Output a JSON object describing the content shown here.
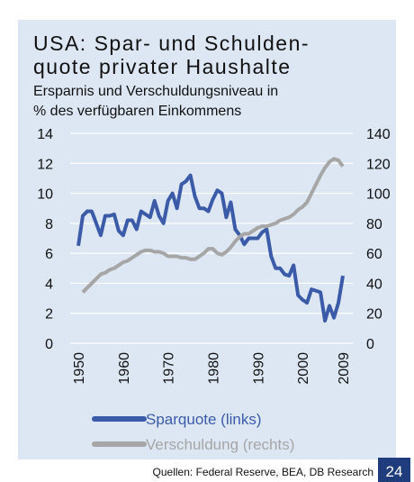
{
  "chart_data": {
    "type": "line",
    "title": [
      "USA: Spar- und Schulden-",
      "quote privater Haushalte"
    ],
    "subtitle": [
      "Ersparnis und Verschuldungsniveau in",
      "% des verfügbaren Einkommens"
    ],
    "source": "Quellen: Federal Reserve, BEA, DB Research",
    "page_number": "24",
    "x": [
      1950,
      1951,
      1952,
      1953,
      1954,
      1955,
      1956,
      1957,
      1958,
      1959,
      1960,
      1961,
      1962,
      1963,
      1964,
      1965,
      1966,
      1967,
      1968,
      1969,
      1970,
      1971,
      1972,
      1973,
      1974,
      1975,
      1976,
      1977,
      1978,
      1979,
      1980,
      1981,
      1982,
      1983,
      1984,
      1985,
      1986,
      1987,
      1988,
      1989,
      1990,
      1991,
      1992,
      1993,
      1994,
      1995,
      1996,
      1997,
      1998,
      1999,
      2000,
      2001,
      2002,
      2003,
      2004,
      2005,
      2006,
      2007,
      2008,
      2009
    ],
    "xlim": [
      1950,
      2009
    ],
    "xticks": [
      1950,
      1960,
      1970,
      1980,
      1990,
      2000,
      2009
    ],
    "ylim": [
      0,
      14
    ],
    "yticks": [
      0,
      2,
      4,
      6,
      8,
      10,
      12,
      14
    ],
    "y2lim": [
      0,
      140
    ],
    "y2ticks": [
      0,
      20,
      40,
      60,
      80,
      100,
      120,
      140
    ],
    "grid": true,
    "series": [
      {
        "name": "Sparquote (links)",
        "color": "#3b5ba9",
        "axis": "y",
        "values": [
          6.5,
          8.5,
          8.8,
          8.8,
          8.0,
          7.2,
          8.5,
          8.5,
          8.6,
          7.5,
          7.2,
          8.2,
          8.2,
          7.6,
          8.8,
          8.6,
          8.4,
          9.5,
          8.5,
          8.0,
          9.5,
          10.0,
          9.0,
          10.6,
          10.8,
          11.2,
          9.8,
          9.0,
          9.0,
          8.8,
          9.6,
          10.2,
          10.0,
          8.4,
          9.4,
          7.6,
          7.2,
          6.6,
          7.0,
          7.0,
          7.0,
          7.4,
          7.6,
          5.8,
          5.0,
          5.0,
          4.6,
          4.5,
          5.2,
          3.2,
          2.9,
          2.7,
          3.6,
          3.5,
          3.4,
          1.5,
          2.5,
          1.7,
          2.7,
          4.5
        ]
      },
      {
        "name": "Verschuldung (rechts)",
        "color": "#a6a6a6",
        "axis": "y2",
        "values": [
          null,
          34,
          37,
          40,
          43,
          46,
          47,
          49,
          50,
          52,
          54,
          55,
          57,
          59,
          61,
          62,
          62,
          61,
          61,
          60,
          58,
          58,
          58,
          57,
          57,
          56,
          56,
          58,
          60,
          63,
          63,
          60,
          59,
          61,
          64,
          68,
          71,
          73,
          73,
          75,
          77,
          78,
          78,
          79,
          80,
          82,
          83,
          84,
          86,
          89,
          91,
          94,
          100,
          106,
          112,
          117,
          121,
          123,
          122,
          118
        ]
      }
    ]
  }
}
